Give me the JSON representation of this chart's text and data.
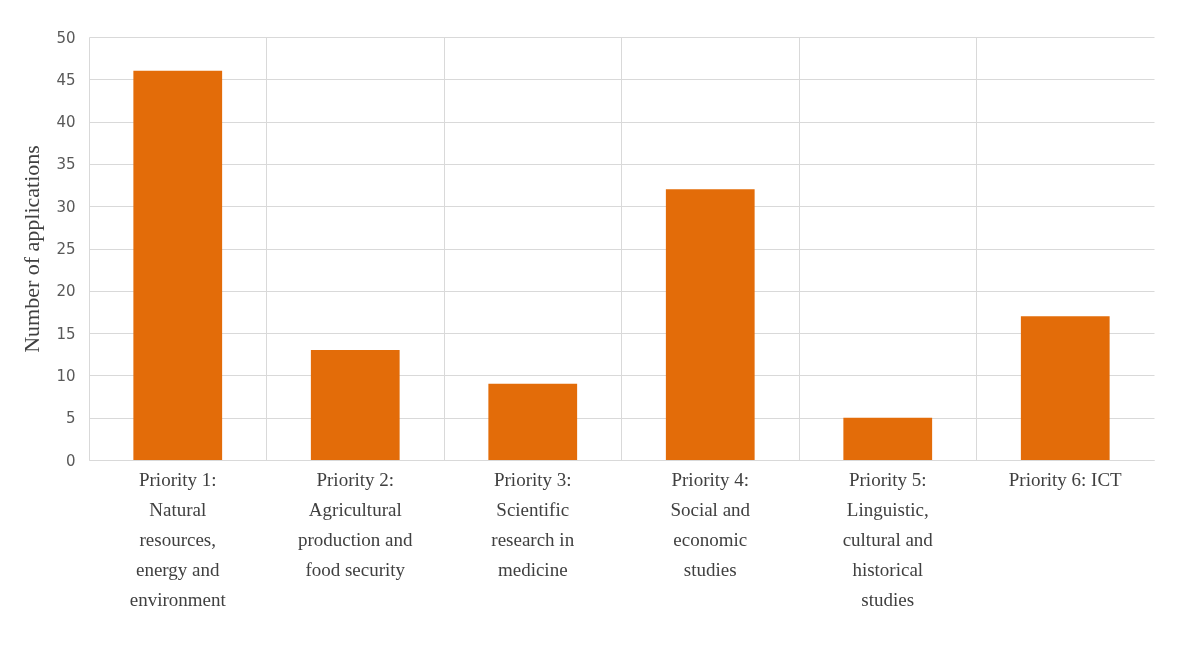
{
  "chart_data": {
    "type": "bar",
    "ylabel": "Number of applications",
    "categories": [
      "Priority 1: Natural resources, energy and environment",
      "Priority 2: Agricultural production and food security",
      "Priority 3: Scientific research in medicine",
      "Priority 4: Social and economic studies",
      "Priority 5: Linguistic, cultural and historical studies",
      "Priority 6: ICT"
    ],
    "values": [
      46,
      13,
      9,
      32,
      5,
      17
    ],
    "color": "#e36c09",
    "ylim": [
      0,
      50
    ],
    "yticks": [
      0,
      5,
      10,
      15,
      20,
      25,
      30,
      35,
      40,
      45,
      50
    ],
    "grid": true
  }
}
